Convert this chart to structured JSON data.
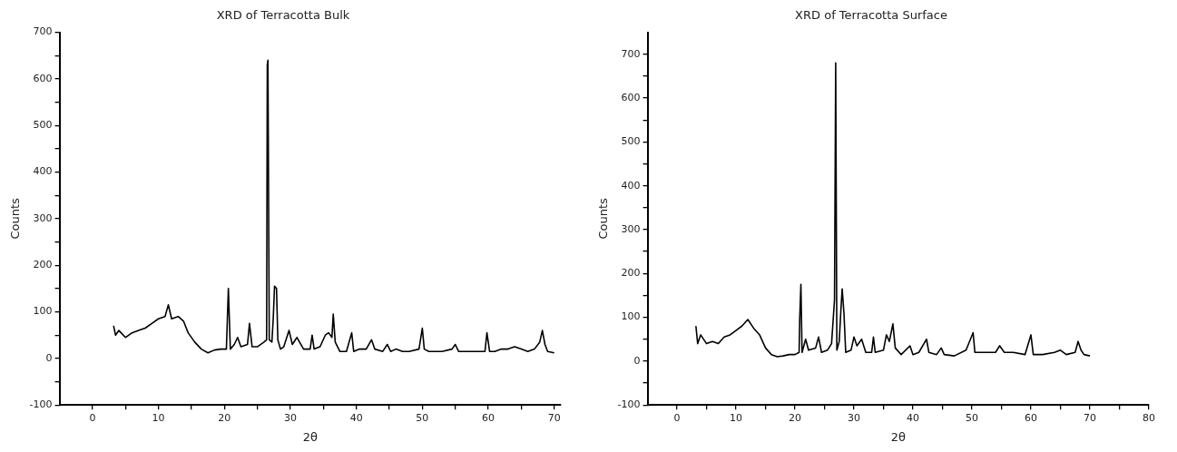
{
  "chart_data": [
    {
      "type": "line",
      "title": "XRD of Terracotta Bulk",
      "xlabel": "2θ",
      "ylabel": "Counts",
      "xlim": [
        -5,
        71
      ],
      "ylim": [
        -100,
        700
      ],
      "xticks": [
        0,
        {
          "value": 5,
          "label": null
        },
        10,
        {
          "value": 15,
          "label": null
        },
        20,
        {
          "value": 25,
          "label": null
        },
        30,
        {
          "value": 35,
          "label": null
        },
        40,
        {
          "value": 45,
          "label": null
        },
        50,
        {
          "value": 55,
          "label": null
        },
        60,
        {
          "value": 65,
          "label": null
        },
        70
      ],
      "yticks": [
        -100,
        {
          "value": -50,
          "label": null
        },
        0,
        {
          "value": 50,
          "label": null
        },
        100,
        {
          "value": 150,
          "label": null
        },
        200,
        {
          "value": 250,
          "label": null
        },
        300,
        {
          "value": 350,
          "label": null
        },
        400,
        {
          "value": 450,
          "label": null
        },
        500,
        {
          "value": 550,
          "label": null
        },
        600,
        {
          "value": 650,
          "label": null
        },
        700
      ],
      "grid": false,
      "legend": false,
      "marker": "none",
      "line_style": "solid",
      "series": [
        {
          "color": "#000000",
          "x": [
            3.2,
            3.5,
            4,
            5,
            6,
            7,
            8,
            9,
            10,
            11,
            11.5,
            12,
            13,
            13.8,
            14.5,
            15.5,
            16.5,
            17.5,
            18.5,
            19.5,
            20.3,
            20.6,
            20.9,
            21.5,
            22,
            22.5,
            23.5,
            23.8,
            24.2,
            25,
            26,
            26.4,
            26.5,
            26.6,
            26.8,
            27.2,
            27.4,
            27.6,
            27.9,
            28.1,
            28.5,
            29,
            29.8,
            30.3,
            31,
            32,
            33,
            33.3,
            33.6,
            34.5,
            35.3,
            35.8,
            36.3,
            36.5,
            36.8,
            37.5,
            38.5,
            39.3,
            39.6,
            40.5,
            41.5,
            42.3,
            42.8,
            44,
            44.7,
            45.2,
            46,
            47,
            48,
            49.5,
            50,
            50.3,
            51,
            52,
            53,
            54.5,
            55,
            55.5,
            57,
            58,
            59.5,
            59.8,
            60.2,
            61,
            62,
            63,
            64,
            65,
            66,
            67,
            67.8,
            68.2,
            68.6,
            69,
            70
          ],
          "values": [
            70,
            50,
            60,
            45,
            55,
            60,
            65,
            75,
            85,
            90,
            115,
            85,
            90,
            80,
            55,
            35,
            20,
            12,
            18,
            20,
            20,
            150,
            20,
            30,
            45,
            25,
            30,
            75,
            25,
            25,
            35,
            40,
            630,
            640,
            40,
            35,
            85,
            155,
            150,
            40,
            20,
            25,
            60,
            30,
            45,
            20,
            20,
            50,
            20,
            25,
            50,
            55,
            45,
            95,
            35,
            15,
            15,
            55,
            15,
            20,
            20,
            40,
            20,
            15,
            30,
            15,
            20,
            15,
            15,
            20,
            65,
            20,
            15,
            15,
            15,
            20,
            30,
            15,
            15,
            15,
            15,
            55,
            15,
            15,
            20,
            20,
            25,
            20,
            15,
            20,
            35,
            60,
            30,
            15,
            12
          ]
        }
      ]
    },
    {
      "type": "line",
      "title": "XRD of Terracotta Surface",
      "xlabel": "2θ",
      "ylabel": "Counts",
      "xlim": [
        -5,
        80
      ],
      "ylim": [
        -100,
        750
      ],
      "xticks": [
        0,
        {
          "value": 5,
          "label": null
        },
        10,
        {
          "value": 15,
          "label": null
        },
        20,
        {
          "value": 25,
          "label": null
        },
        30,
        {
          "value": 35,
          "label": null
        },
        40,
        {
          "value": 45,
          "label": null
        },
        50,
        {
          "value": 55,
          "label": null
        },
        60,
        {
          "value": 65,
          "label": null
        },
        70,
        {
          "value": 75,
          "label": null
        },
        80
      ],
      "yticks": [
        -100,
        {
          "value": -50,
          "label": null
        },
        0,
        {
          "value": 50,
          "label": null
        },
        100,
        {
          "value": 150,
          "label": null
        },
        200,
        {
          "value": 250,
          "label": null
        },
        300,
        {
          "value": 350,
          "label": null
        },
        400,
        {
          "value": 450,
          "label": null
        },
        500,
        {
          "value": 550,
          "label": null
        },
        600,
        {
          "value": 650,
          "label": null
        },
        700
      ],
      "grid": false,
      "legend": false,
      "marker": "none",
      "line_style": "solid",
      "series": [
        {
          "color": "#000000",
          "x": [
            3.2,
            3.5,
            4,
            5,
            6,
            7,
            8,
            9,
            10,
            11,
            12,
            13,
            14,
            15,
            16,
            17,
            18,
            19,
            20,
            20.7,
            20.8,
            21,
            21.2,
            21.8,
            22.3,
            23.5,
            24,
            24.5,
            25.5,
            26.2,
            26.5,
            26.7,
            26.9,
            27.1,
            27.5,
            27.8,
            28,
            28.3,
            28.6,
            29.5,
            30,
            30.5,
            31.3,
            32,
            33,
            33.3,
            33.6,
            35,
            35.5,
            36,
            36.6,
            37,
            38,
            39.5,
            40,
            41,
            42.3,
            42.7,
            44,
            44.8,
            45.3,
            47,
            49,
            50.2,
            50.5,
            52,
            54,
            54.7,
            55.5,
            57,
            59,
            60,
            60.4,
            62,
            64,
            65,
            66,
            67.5,
            68,
            68.5,
            69,
            70
          ],
          "values": [
            80,
            40,
            60,
            40,
            45,
            40,
            55,
            60,
            70,
            80,
            95,
            75,
            60,
            30,
            15,
            10,
            12,
            15,
            15,
            20,
            95,
            175,
            20,
            50,
            25,
            30,
            55,
            20,
            25,
            40,
            100,
            140,
            680,
            25,
            45,
            120,
            165,
            110,
            20,
            25,
            55,
            35,
            50,
            20,
            20,
            55,
            20,
            25,
            60,
            45,
            85,
            30,
            15,
            35,
            15,
            20,
            50,
            20,
            15,
            30,
            15,
            12,
            25,
            65,
            20,
            20,
            20,
            35,
            20,
            20,
            15,
            60,
            15,
            15,
            20,
            25,
            15,
            20,
            45,
            25,
            15,
            12
          ]
        }
      ]
    }
  ]
}
